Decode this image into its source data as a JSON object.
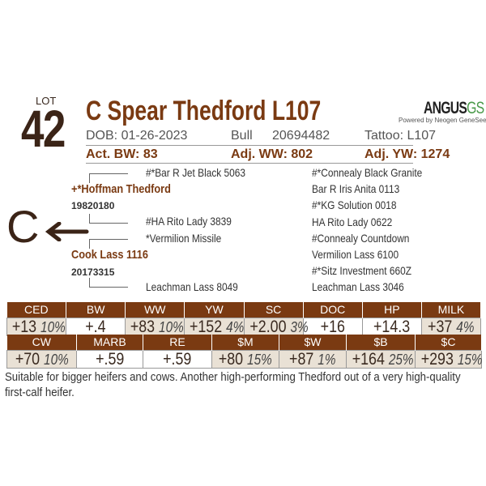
{
  "lot": {
    "label": "LOT",
    "number": "42"
  },
  "title": "C Spear Thedford L107",
  "logo": {
    "text": "ANGUS",
    "suffix": "GS",
    "sub": "Powered by Neogen GeneSeek"
  },
  "info": {
    "dob": "DOB: 01-26-2023",
    "sex": "Bull",
    "reg": "20694482",
    "tattoo": "Tattoo: L107"
  },
  "stats": {
    "bw": "Act. BW: 83",
    "ww": "Adj. WW: 802",
    "yw": "Adj. YW: 1274"
  },
  "pedigree": {
    "sire": {
      "name": "+*Hoffman Thedford",
      "reg": "19820180"
    },
    "dam": {
      "name": "Cook Lass 1116",
      "reg": "20173315"
    },
    "symbol": "C",
    "gen2": [
      "#*Bar R Jet Black 5063",
      "#HA Rito Lady 3839",
      "*Vermilion Missile",
      "Leachman Lass 8049"
    ],
    "gen3": [
      "#*Connealy Black Granite",
      "Bar R Iris Anita 0113",
      "#*KG Solution 0018",
      "HA Rito Lady 0622",
      "#Connealy Countdown",
      "Vermilion Lass 6100",
      "#*Sitz Investment 660Z",
      "Leachman Lass 3046"
    ]
  },
  "epds_row1": [
    {
      "label": "CED",
      "value": "+13",
      "pct": "10%"
    },
    {
      "label": "BW",
      "value": "+.4",
      "pct": ""
    },
    {
      "label": "WW",
      "value": "+83",
      "pct": "10%"
    },
    {
      "label": "YW",
      "value": "+152",
      "pct": "4%"
    },
    {
      "label": "SC",
      "value": "+2.00",
      "pct": "3%"
    },
    {
      "label": "DOC",
      "value": "+16",
      "pct": ""
    },
    {
      "label": "HP",
      "value": "+14.3",
      "pct": ""
    },
    {
      "label": "MILK",
      "value": "+37",
      "pct": "4%"
    }
  ],
  "epds_row2": [
    {
      "label": "CW",
      "value": "+70",
      "pct": "10%"
    },
    {
      "label": "MARB",
      "value": "+.59",
      "pct": ""
    },
    {
      "label": "RE",
      "value": "+.59",
      "pct": ""
    },
    {
      "label": "$M",
      "value": "+80",
      "pct": "15%"
    },
    {
      "label": "$W",
      "value": "+87",
      "pct": "1%"
    },
    {
      "label": "$B",
      "value": "+164",
      "pct": "25%"
    },
    {
      "label": "$C",
      "value": "+293",
      "pct": "15%"
    }
  ],
  "description": "Suitable for bigger heifers and cows. Another high-performing Thedford out of a very high-quality first-calf heifer.",
  "colors": {
    "brand": "#7a3a12",
    "highlight": "#e9e1d5"
  }
}
